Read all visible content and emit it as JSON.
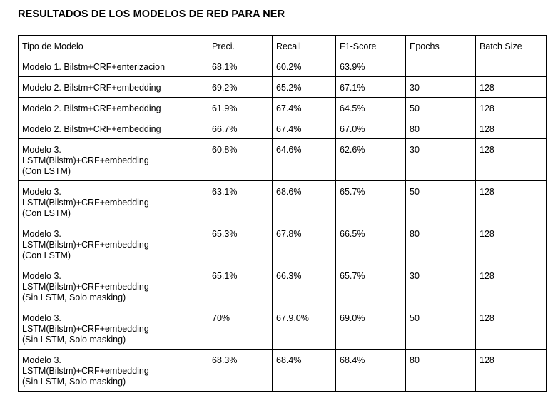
{
  "title": "RESULTADOS DE LOS MODELOS DE RED PARA NER",
  "headers": [
    "Tipo de Modelo",
    "Preci.",
    "Recall",
    "F1-Score",
    "Epochs",
    "Batch Size"
  ],
  "rows": [
    {
      "model": [
        "Modelo 1. Bilstm+CRF+enterizacion"
      ],
      "precision": "68.1%",
      "recall": "60.2%",
      "f1": "63.9%",
      "epochs": "",
      "batch_size": ""
    },
    {
      "model": [
        "Modelo 2. Bilstm+CRF+embedding"
      ],
      "precision": "69.2%",
      "recall": "65.2%",
      "f1": "67.1%",
      "epochs": "30",
      "batch_size": "128"
    },
    {
      "model": [
        "Modelo 2. Bilstm+CRF+embedding"
      ],
      "precision": "61.9%",
      "recall": "67.4%",
      "f1": "64.5%",
      "epochs": "50",
      "batch_size": "128"
    },
    {
      "model": [
        "Modelo 2. Bilstm+CRF+embedding"
      ],
      "precision": "66.7%",
      "recall": "67.4%",
      "f1": "67.0%",
      "epochs": "80",
      "batch_size": "128"
    },
    {
      "model": [
        "Modelo 3.",
        "LSTM(Bilstm)+CRF+embedding",
        "(Con LSTM)"
      ],
      "precision": "60.8%",
      "recall": "64.6%",
      "f1": "62.6%",
      "epochs": "30",
      "batch_size": "128"
    },
    {
      "model": [
        "Modelo 3.",
        "LSTM(Bilstm)+CRF+embedding",
        "(Con LSTM)"
      ],
      "precision": "63.1%",
      "recall": "68.6%",
      "f1": "65.7%",
      "epochs": "50",
      "batch_size": "128"
    },
    {
      "model": [
        "Modelo 3.",
        "LSTM(Bilstm)+CRF+embedding",
        "(Con LSTM)"
      ],
      "precision": "65.3%",
      "recall": "67.8%",
      "f1": "66.5%",
      "epochs": "80",
      "batch_size": "128"
    },
    {
      "model": [
        "Modelo 3.",
        "LSTM(Bilstm)+CRF+embedding",
        "(Sin LSTM, Solo masking)"
      ],
      "precision": "65.1%",
      "recall": "66.3%",
      "f1": "65.7%",
      "epochs": "30",
      "batch_size": "128"
    },
    {
      "model": [
        "Modelo 3.",
        "LSTM(Bilstm)+CRF+embedding",
        "(Sin LSTM, Solo masking)"
      ],
      "precision": "70%",
      "recall": "67.9.0%",
      "f1": "69.0%",
      "epochs": "50",
      "batch_size": "128"
    },
    {
      "model": [
        "Modelo 3.",
        "LSTM(Bilstm)+CRF+embedding",
        "(Sin LSTM, Solo masking)"
      ],
      "precision": "68.3%",
      "recall": "68.4%",
      "f1": "68.4%",
      "epochs": "80",
      "batch_size": "128"
    }
  ]
}
